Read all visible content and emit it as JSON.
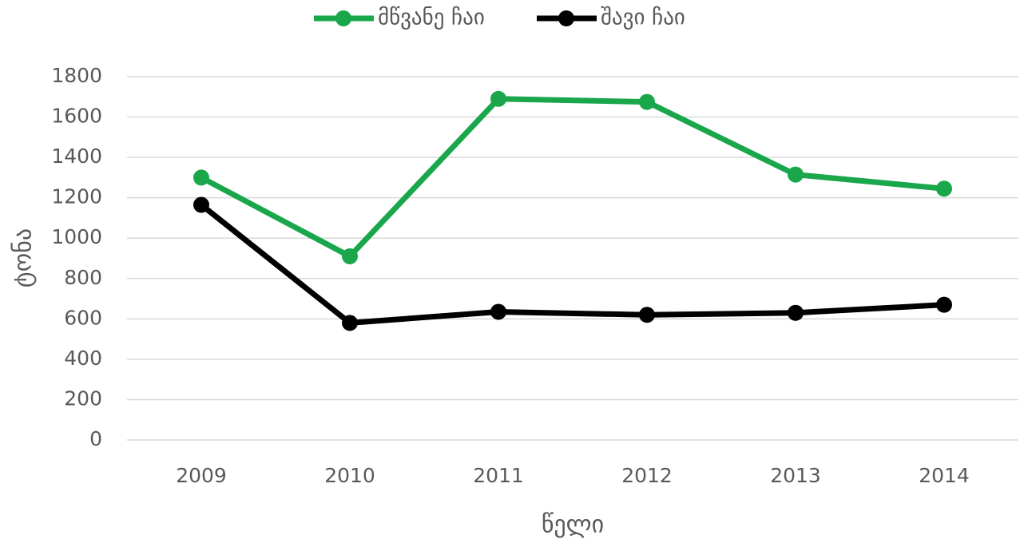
{
  "chart_data": {
    "type": "line",
    "categories": [
      "2009",
      "2010",
      "2011",
      "2012",
      "2013",
      "2014"
    ],
    "series": [
      {
        "name": "მწვანე ჩაი",
        "color": "#1aa64a",
        "values": [
          1300,
          910,
          1690,
          1675,
          1315,
          1245
        ]
      },
      {
        "name": "შავი ჩაი",
        "color": "#000000",
        "values": [
          1165,
          580,
          635,
          620,
          630,
          670
        ]
      }
    ],
    "x_label": "წელი",
    "y_label": "ტონა",
    "ylim": [
      0,
      1800
    ],
    "yticks": [
      0,
      200,
      400,
      600,
      800,
      1000,
      1200,
      1400,
      1600,
      1800
    ],
    "grid": true,
    "legend": "top"
  }
}
